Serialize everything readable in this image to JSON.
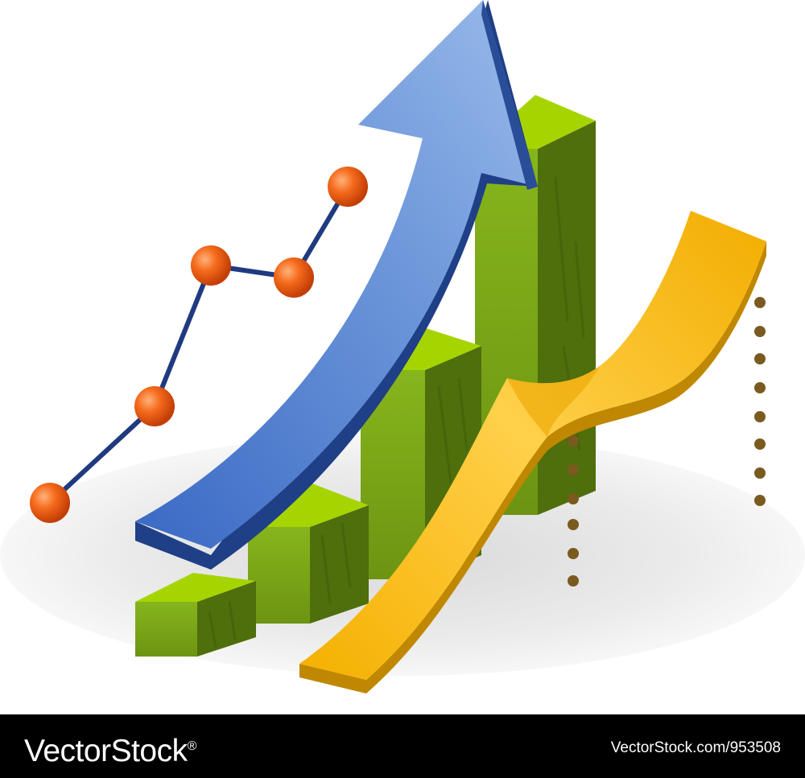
{
  "footer": {
    "brand": "VectorStock",
    "brand_mark": "®",
    "image_ref": "VectorStock.com/953508"
  },
  "colors": {
    "background": "#ffffff",
    "footer_bg": "#000000",
    "bar_top": "#a6d400",
    "bar_front": "#7aa617",
    "bar_side": "#4f6e0c",
    "arrow_light": "#8cb0e4",
    "arrow_dark": "#3a69c4",
    "arrow_edge": "#1f3f86",
    "ribbon_light": "#ffc21c",
    "ribbon_dark": "#e7a100",
    "ribbon_edge": "#b98200",
    "line": "#1f3a80",
    "marker": "#f26b1a",
    "dots": "#7a5a1e"
  },
  "icons": [
    "growth-arrow-icon",
    "bar-graph-icon",
    "line-graph-icon",
    "ribbon-curve-icon"
  ]
}
